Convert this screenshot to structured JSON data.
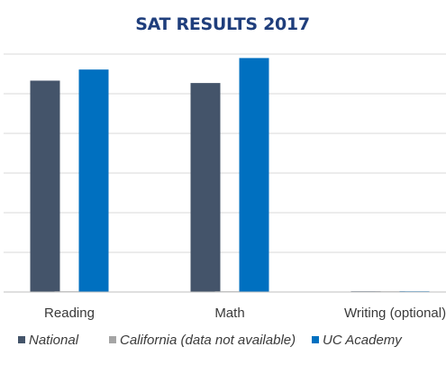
{
  "chart_data": {
    "type": "bar",
    "title": "SAT RESULTS 2017",
    "categories": [
      "Reading",
      "Math",
      "Writing (optional)"
    ],
    "series": [
      {
        "name": "National",
        "values": [
          533,
          527,
          0
        ],
        "color": "#44546a"
      },
      {
        "name": "California (data not available)",
        "values": [
          0,
          0,
          0
        ],
        "color": "#a5a5a5"
      },
      {
        "name": "UC Academy",
        "values": [
          561,
          590,
          0
        ],
        "color": "#0070c0"
      }
    ],
    "xlabel": "",
    "ylabel": "",
    "ylim": [
      0,
      600
    ],
    "grid": true,
    "legend": "bottom",
    "colors": {
      "title": "#1f3e7c",
      "grid": "#d9d9d9",
      "axis": "#bfbfbf"
    }
  }
}
